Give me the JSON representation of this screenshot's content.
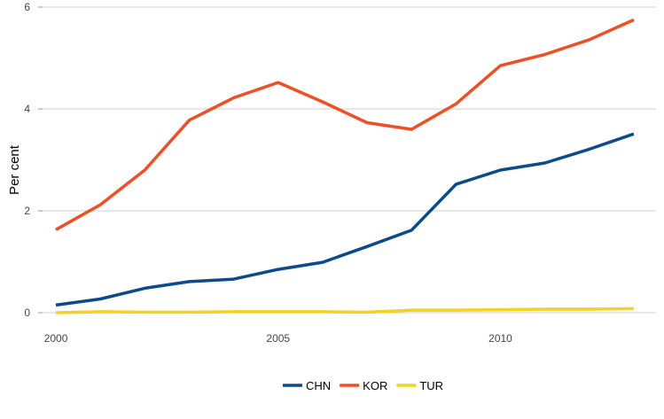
{
  "chart_data": {
    "type": "line",
    "title": "",
    "xlabel": "",
    "ylabel": "Per cent",
    "x": [
      2000,
      2001,
      2002,
      2003,
      2004,
      2005,
      2006,
      2007,
      2008,
      2009,
      2010,
      2011,
      2012,
      2013
    ],
    "xticks": [
      2000,
      2005,
      2010
    ],
    "yticks": [
      0,
      2,
      4,
      6
    ],
    "xlim": [
      1999.7,
      2013.5
    ],
    "ylim": [
      0,
      6
    ],
    "grid": "horizontal",
    "legend_position": "bottom",
    "series": [
      {
        "name": "CHN",
        "color": "#0b4a8b",
        "values": [
          0.15,
          0.27,
          0.48,
          0.61,
          0.66,
          0.85,
          0.99,
          1.3,
          1.62,
          2.52,
          2.8,
          2.94,
          3.21,
          3.51
        ]
      },
      {
        "name": "KOR",
        "color": "#f04e23",
        "values": [
          1.63,
          2.12,
          2.8,
          3.78,
          4.22,
          4.52,
          4.14,
          3.73,
          3.6,
          4.1,
          4.85,
          5.07,
          5.36,
          5.75
        ]
      },
      {
        "name": "TUR",
        "color": "#f5d21b",
        "values": [
          0.0,
          0.02,
          0.01,
          0.01,
          0.02,
          0.02,
          0.02,
          0.01,
          0.05,
          0.05,
          0.06,
          0.07,
          0.07,
          0.08
        ]
      }
    ]
  }
}
